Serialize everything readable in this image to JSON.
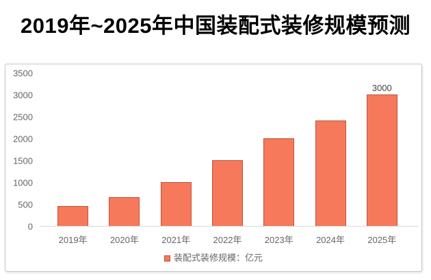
{
  "title": "2019年~2025年中国装配式装修规模预测",
  "chart_data": {
    "type": "bar",
    "title": "2019年~2025年中国装配式装修规模预测",
    "categories": [
      "2019年",
      "2020年",
      "2021年",
      "2022年",
      "2023年",
      "2024年",
      "2025年"
    ],
    "values": [
      450,
      650,
      1000,
      1500,
      2000,
      2400,
      3000
    ],
    "bar_labels": [
      "",
      "",
      "",
      "",
      "",
      "",
      "3000"
    ],
    "unit": "亿元",
    "legend": "装配式装修规模：亿元",
    "legend_position": "bottom",
    "xlabel": "",
    "ylabel": "",
    "ylim": [
      0,
      3500
    ],
    "yticks": [
      3500,
      3000,
      2500,
      2000,
      1500,
      1000,
      500,
      0
    ],
    "grid": false,
    "colors": {
      "bar_fill": "#F6795B",
      "bar_border": "#C05138",
      "axis_text": "#666666",
      "data_label": "#444444",
      "baseline": "#D8D8D8",
      "panel_border": "#C6C6C6",
      "title_color": "#000000"
    }
  }
}
